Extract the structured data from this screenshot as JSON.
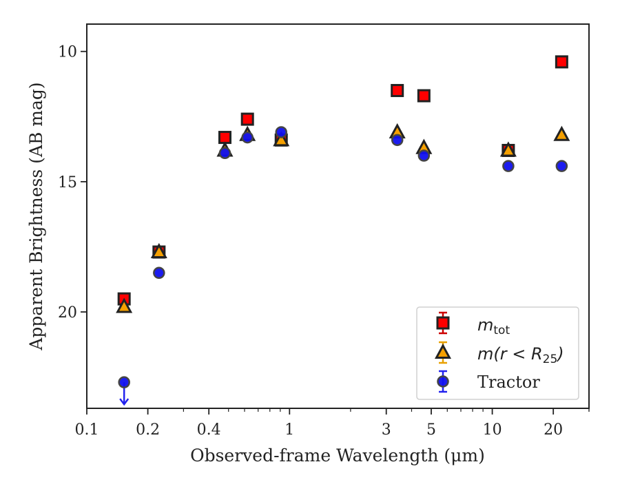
{
  "chart_data": {
    "type": "scatter",
    "title": "",
    "xlabel": "Observed-frame Wavelength (μm)",
    "ylabel": "Apparent Brightness (AB mag)",
    "xscale": "log",
    "xlim": [
      0.1,
      30
    ],
    "ylim": [
      23.7,
      8.95
    ],
    "y_inverted": true,
    "x_ticks": [
      0.1,
      0.2,
      0.4,
      1,
      3,
      5,
      10,
      20
    ],
    "x_tick_labels": [
      "0.1",
      "0.2",
      "0.4",
      "1",
      "3",
      "5",
      "10",
      "20"
    ],
    "y_ticks": [
      10,
      15,
      20
    ],
    "y_tick_labels": [
      "10",
      "15",
      "20"
    ],
    "grid": false,
    "legend_position": "bottom-right",
    "series": [
      {
        "name": "m_tot",
        "legend_main": "m",
        "legend_sub": "tot",
        "marker": "square",
        "color": "#ff0000",
        "edge": "#222222",
        "errbar_color": "#cc0000",
        "points": [
          {
            "x": 0.1528,
            "y": 19.5
          },
          {
            "x": 0.2271,
            "y": 17.7
          },
          {
            "x": 0.48,
            "y": 13.3
          },
          {
            "x": 0.62,
            "y": 12.6
          },
          {
            "x": 0.91,
            "y": 13.4
          },
          {
            "x": 3.4,
            "y": 11.5
          },
          {
            "x": 4.6,
            "y": 11.7
          },
          {
            "x": 12.0,
            "y": 13.8
          },
          {
            "x": 22.0,
            "y": 10.4
          }
        ]
      },
      {
        "name": "m(r < R25)",
        "legend_main": "m(r < R",
        "legend_sub": "25",
        "legend_tail": ")",
        "marker": "triangle",
        "color": "#f5a000",
        "edge": "#222222",
        "errbar_color": "#e8a000",
        "points": [
          {
            "x": 0.1528,
            "y": 19.8
          },
          {
            "x": 0.2271,
            "y": 17.7
          },
          {
            "x": 0.48,
            "y": 13.8
          },
          {
            "x": 0.62,
            "y": 13.2
          },
          {
            "x": 0.91,
            "y": 13.4
          },
          {
            "x": 3.4,
            "y": 13.1
          },
          {
            "x": 4.6,
            "y": 13.7
          },
          {
            "x": 12.0,
            "y": 13.8
          },
          {
            "x": 22.0,
            "y": 13.2
          }
        ]
      },
      {
        "name": "Tractor",
        "legend_main": "Tractor",
        "marker": "circle",
        "color": "#1010ee",
        "edge": "#444444",
        "errbar_color": "#2222ee",
        "points": [
          {
            "x": 0.1528,
            "y": 22.7,
            "upper_limit": true
          },
          {
            "x": 0.2271,
            "y": 18.5
          },
          {
            "x": 0.48,
            "y": 13.9
          },
          {
            "x": 0.62,
            "y": 13.3
          },
          {
            "x": 0.91,
            "y": 13.1
          },
          {
            "x": 3.4,
            "y": 13.4
          },
          {
            "x": 4.6,
            "y": 14.0
          },
          {
            "x": 12.0,
            "y": 14.4
          },
          {
            "x": 22.0,
            "y": 14.4
          }
        ]
      }
    ]
  }
}
